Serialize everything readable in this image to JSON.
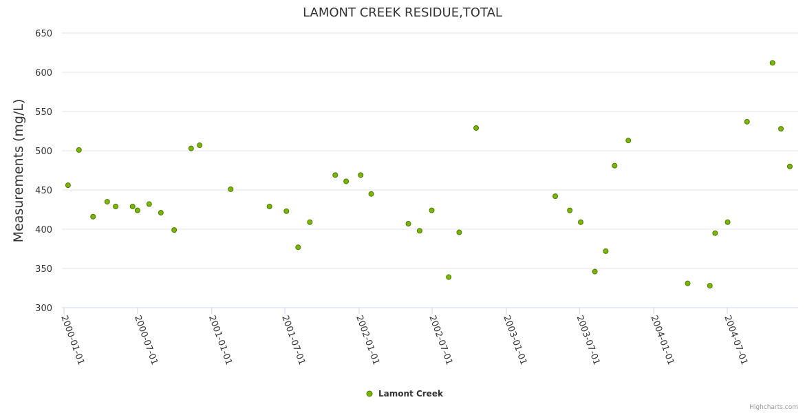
{
  "chart_data": {
    "type": "scatter",
    "title": "LAMONT CREEK RESIDUE,TOTAL",
    "xlabel": "",
    "ylabel": "Measurements (mg/L)",
    "ylim": [
      300,
      650
    ],
    "yticks": [
      300,
      350,
      400,
      450,
      500,
      550,
      600,
      650
    ],
    "xticks": [
      "2000-01-01",
      "2000-07-01",
      "2001-01-01",
      "2001-07-01",
      "2002-01-01",
      "2002-07-01",
      "2003-01-01",
      "2003-07-01",
      "2004-01-01",
      "2004-07-01"
    ],
    "grid": true,
    "legend_position": "bottom-center",
    "credits": "Highcharts.com",
    "colors": {
      "marker": "#7cb500",
      "marker_stroke": "#4a7a00"
    },
    "series": [
      {
        "name": "Lamont Creek",
        "points": [
          [
            "2000-01-11",
            456
          ],
          [
            "2000-02-07",
            501
          ],
          [
            "2000-03-13",
            416
          ],
          [
            "2000-04-17",
            435
          ],
          [
            "2000-05-08",
            429
          ],
          [
            "2000-06-19",
            429
          ],
          [
            "2000-07-01",
            424
          ],
          [
            "2000-07-30",
            432
          ],
          [
            "2000-08-28",
            421
          ],
          [
            "2000-09-30",
            399
          ],
          [
            "2000-11-11",
            503
          ],
          [
            "2000-12-02",
            507
          ],
          [
            "2001-02-17",
            451
          ],
          [
            "2001-05-24",
            429
          ],
          [
            "2001-07-05",
            423
          ],
          [
            "2001-08-03",
            377
          ],
          [
            "2001-09-01",
            409
          ],
          [
            "2001-11-03",
            469
          ],
          [
            "2001-11-30",
            461
          ],
          [
            "2002-01-05",
            469
          ],
          [
            "2002-01-31",
            445
          ],
          [
            "2002-05-03",
            407
          ],
          [
            "2002-05-31",
            398
          ],
          [
            "2002-06-30",
            424
          ],
          [
            "2002-08-11",
            339
          ],
          [
            "2002-09-06",
            396
          ],
          [
            "2002-10-18",
            529
          ],
          [
            "2003-05-02",
            442
          ],
          [
            "2003-06-07",
            424
          ],
          [
            "2003-07-04",
            409
          ],
          [
            "2003-08-08",
            346
          ],
          [
            "2003-09-04",
            372
          ],
          [
            "2003-09-26",
            481
          ],
          [
            "2003-10-30",
            513
          ],
          [
            "2004-03-25",
            331
          ],
          [
            "2004-05-19",
            328
          ],
          [
            "2004-06-01",
            395
          ],
          [
            "2004-07-02",
            409
          ],
          [
            "2004-08-19",
            537
          ],
          [
            "2004-10-21",
            612
          ],
          [
            "2004-11-11",
            528
          ],
          [
            "2004-12-03",
            480
          ]
        ]
      }
    ]
  }
}
